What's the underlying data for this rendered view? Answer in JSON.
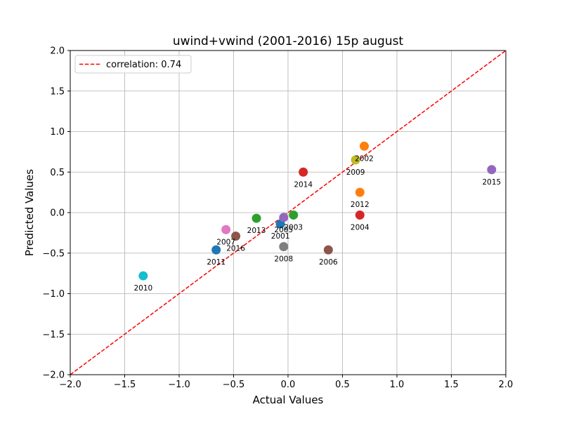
{
  "chart_data": {
    "type": "scatter",
    "title": "uwind+vwind (2001-2016) 15p august",
    "xlabel": "Actual Values",
    "ylabel": "Predicted Values",
    "xlim": [
      -2.0,
      2.0
    ],
    "ylim": [
      -2.0,
      2.0
    ],
    "x_ticks": [
      "−2.0",
      "−1.5",
      "−1.0",
      "−0.5",
      "0.0",
      "0.5",
      "1.0",
      "1.5",
      "2.0"
    ],
    "y_ticks": [
      "−2.0",
      "−1.5",
      "−1.0",
      "−0.5",
      "0.0",
      "0.5",
      "1.0",
      "1.5",
      "2.0"
    ],
    "grid": true,
    "legend": {
      "position": "top-left",
      "label": "correlation: 0.74"
    },
    "reference_line": {
      "style": "dashed",
      "color": "#ff0000",
      "x": [
        -2.0,
        2.0
      ],
      "y": [
        -2.0,
        2.0
      ]
    },
    "points": [
      {
        "label": "2001",
        "x": -0.07,
        "y": -0.14,
        "color": "#1f77b4"
      },
      {
        "label": "2002",
        "x": 0.7,
        "y": 0.82,
        "color": "#ff7f0e"
      },
      {
        "label": "2003",
        "x": 0.05,
        "y": -0.03,
        "color": "#2ca02c"
      },
      {
        "label": "2004",
        "x": 0.66,
        "y": -0.03,
        "color": "#d62728"
      },
      {
        "label": "2005",
        "x": -0.04,
        "y": -0.06,
        "color": "#9467bd"
      },
      {
        "label": "2006",
        "x": 0.37,
        "y": -0.46,
        "color": "#8c564b"
      },
      {
        "label": "2007",
        "x": -0.57,
        "y": -0.21,
        "color": "#e377c2"
      },
      {
        "label": "2008",
        "x": -0.04,
        "y": -0.42,
        "color": "#7f7f7f"
      },
      {
        "label": "2009",
        "x": 0.62,
        "y": 0.65,
        "color": "#bcbd22"
      },
      {
        "label": "2010",
        "x": -1.33,
        "y": -0.78,
        "color": "#17becf"
      },
      {
        "label": "2011",
        "x": -0.66,
        "y": -0.46,
        "color": "#1f77b4"
      },
      {
        "label": "2012",
        "x": 0.66,
        "y": 0.25,
        "color": "#ff7f0e"
      },
      {
        "label": "2013",
        "x": -0.29,
        "y": -0.07,
        "color": "#2ca02c"
      },
      {
        "label": "2014",
        "x": 0.14,
        "y": 0.5,
        "color": "#d62728"
      },
      {
        "label": "2015",
        "x": 1.87,
        "y": 0.53,
        "color": "#9467bd"
      },
      {
        "label": "2016",
        "x": -0.48,
        "y": -0.29,
        "color": "#8c564b"
      }
    ]
  }
}
